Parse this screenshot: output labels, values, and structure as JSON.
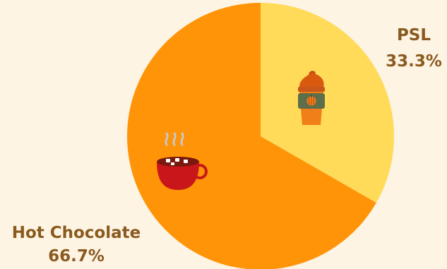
{
  "colors": {
    "background": "#fdf4e3",
    "label": "#8a5a1f"
  },
  "chart_data": {
    "type": "pie",
    "title": "",
    "start_angle_deg": 0,
    "direction": "clockwise",
    "slices": [
      {
        "label": "PSL",
        "value": 33.3,
        "percent_label": "33.3%",
        "color": "#ffdb59",
        "icon": "pumpkin-spice-latte-icon"
      },
      {
        "label": "Hot Chocolate",
        "value": 66.7,
        "percent_label": "66.7%",
        "color": "#ff9408",
        "icon": "hot-chocolate-mug-icon"
      }
    ]
  }
}
